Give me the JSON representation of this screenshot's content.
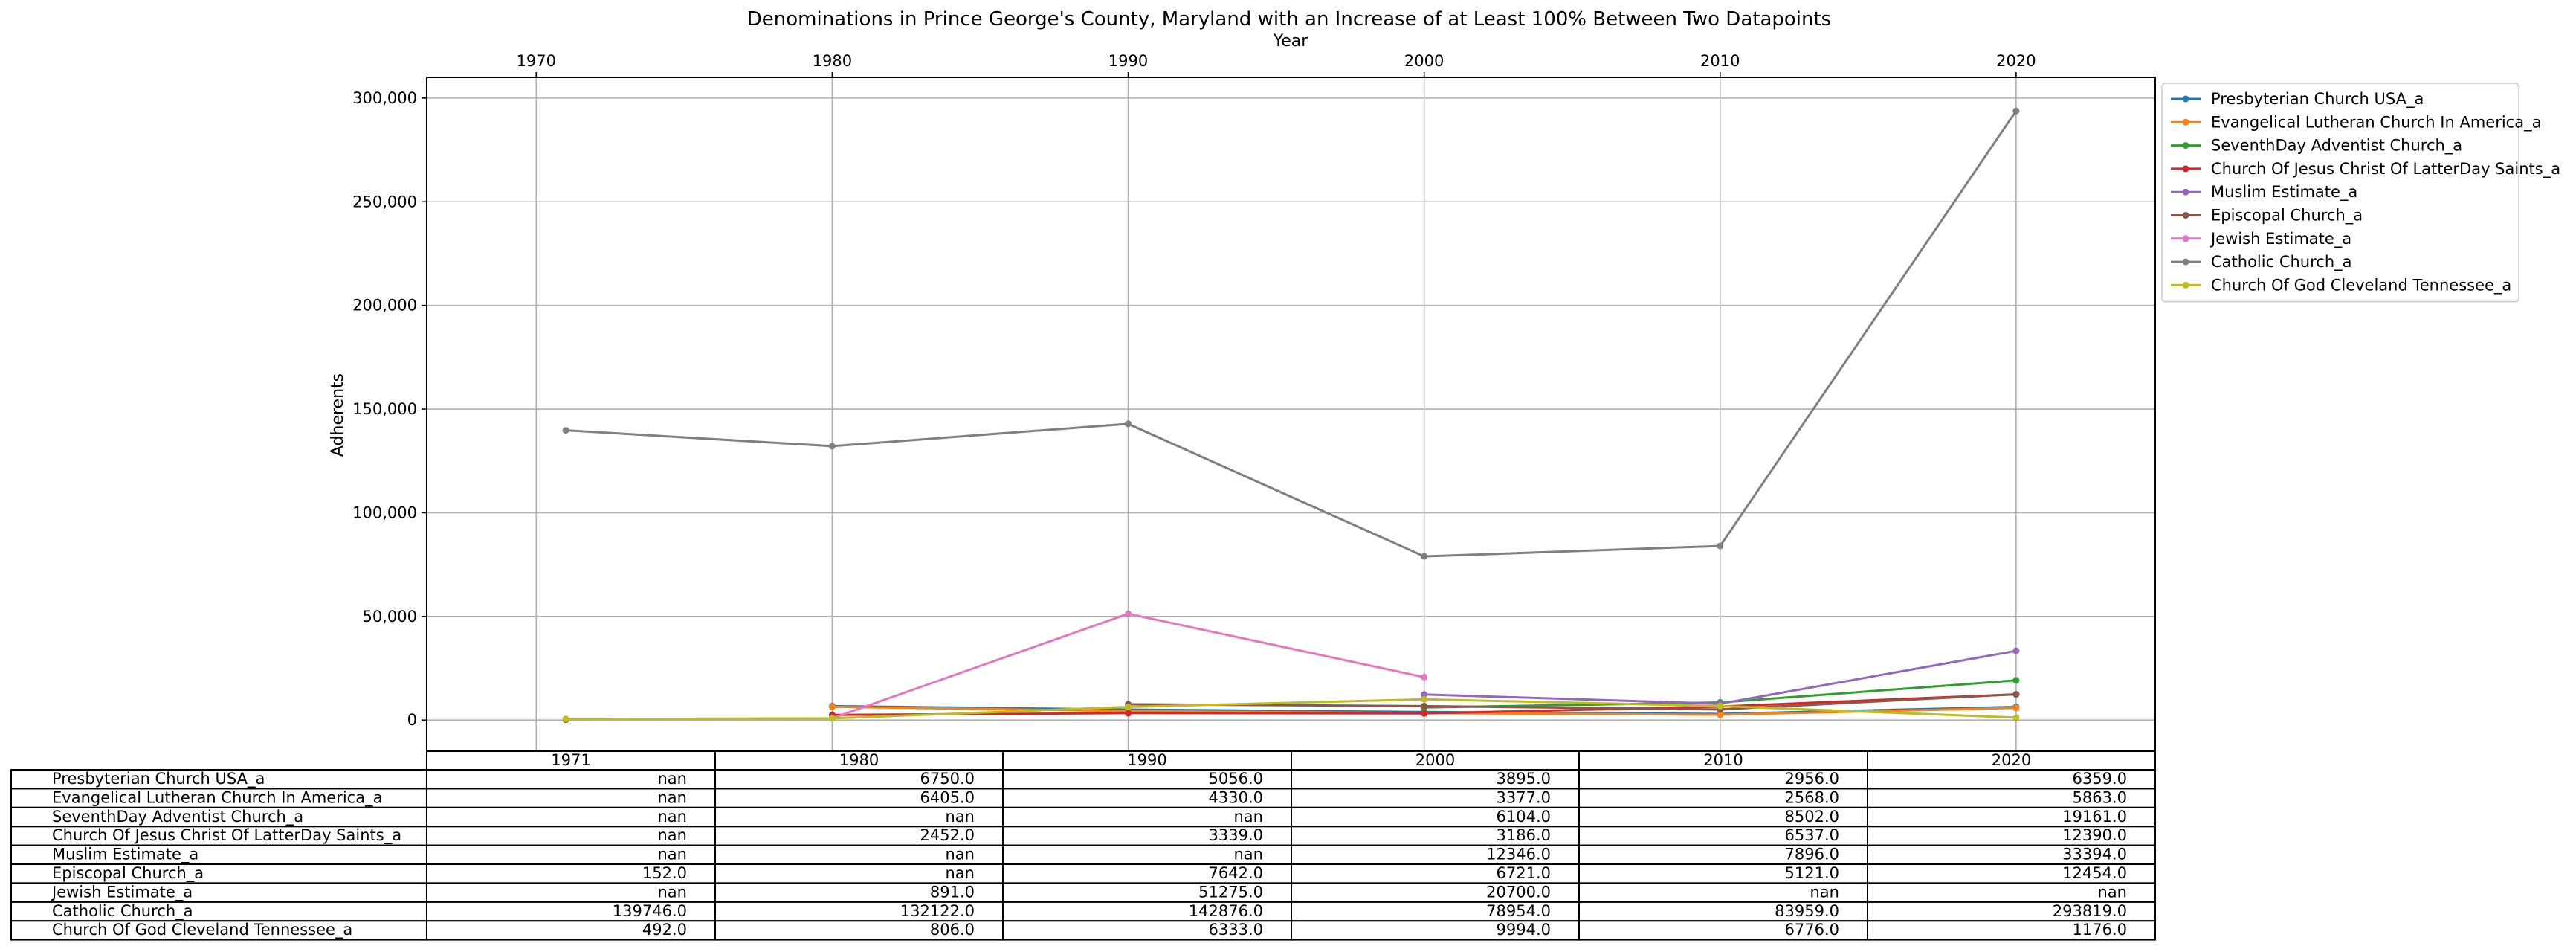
{
  "chart_data": {
    "type": "line",
    "title": "Denominations in Prince George's County, Maryland with an Increase of at Least 100% Between Two Datapoints",
    "xlabel": "Year",
    "ylabel": "Adherents",
    "xlim": [
      1966.3,
      2024.7
    ],
    "ylim": [
      -15000,
      310000
    ],
    "x_ticks": [
      1970,
      1980,
      1990,
      2000,
      2010,
      2020
    ],
    "y_ticks": [
      0,
      50000,
      100000,
      150000,
      200000,
      250000,
      300000
    ],
    "y_tick_labels": [
      "0",
      "50,000",
      "100,000",
      "150,000",
      "200,000",
      "250,000",
      "300,000"
    ],
    "x_axis_position": "top",
    "grid": true,
    "legend_position": "outside-right",
    "x": [
      1971,
      1980,
      1990,
      2000,
      2010,
      2020
    ],
    "series": [
      {
        "name": "Presbyterian Church USA_a",
        "color": "#1f77b4",
        "values": [
          null,
          6750,
          5056,
          3895,
          2956,
          6359
        ]
      },
      {
        "name": "Evangelical Lutheran Church In America_a",
        "color": "#ff7f0e",
        "values": [
          null,
          6405,
          4330,
          3377,
          2568,
          5863
        ]
      },
      {
        "name": "SeventhDay Adventist Church_a",
        "color": "#2ca02c",
        "values": [
          null,
          null,
          null,
          6104,
          8502,
          19161
        ]
      },
      {
        "name": "Church Of Jesus Christ Of LatterDay Saints_a",
        "color": "#d62728",
        "values": [
          null,
          2452,
          3339,
          3186,
          6537,
          12390
        ]
      },
      {
        "name": "Muslim Estimate_a",
        "color": "#9467bd",
        "values": [
          null,
          null,
          null,
          12346,
          7896,
          33394
        ]
      },
      {
        "name": "Episcopal Church_a",
        "color": "#8c564b",
        "values": [
          152,
          null,
          7642,
          6721,
          5121,
          12454
        ]
      },
      {
        "name": "Jewish Estimate_a",
        "color": "#e377c2",
        "values": [
          null,
          891,
          51275,
          20700,
          null,
          null
        ]
      },
      {
        "name": "Catholic Church_a",
        "color": "#7f7f7f",
        "values": [
          139746,
          132122,
          142876,
          78954,
          83959,
          293819
        ]
      },
      {
        "name": "Church Of God Cleveland Tennessee_a",
        "color": "#bcbd22",
        "values": [
          492,
          806,
          6333,
          9994,
          6776,
          1176
        ]
      }
    ],
    "table": {
      "columns": [
        "1971",
        "1980",
        "1990",
        "2000",
        "2010",
        "2020"
      ],
      "rows": [
        {
          "label": "Presbyterian Church USA_a",
          "cells": [
            "nan",
            "6750.0",
            "5056.0",
            "3895.0",
            "2956.0",
            "6359.0"
          ]
        },
        {
          "label": "Evangelical Lutheran Church In America_a",
          "cells": [
            "nan",
            "6405.0",
            "4330.0",
            "3377.0",
            "2568.0",
            "5863.0"
          ]
        },
        {
          "label": "SeventhDay Adventist Church_a",
          "cells": [
            "nan",
            "nan",
            "nan",
            "6104.0",
            "8502.0",
            "19161.0"
          ]
        },
        {
          "label": "Church Of Jesus Christ Of LatterDay Saints_a",
          "cells": [
            "nan",
            "2452.0",
            "3339.0",
            "3186.0",
            "6537.0",
            "12390.0"
          ]
        },
        {
          "label": "Muslim Estimate_a",
          "cells": [
            "nan",
            "nan",
            "nan",
            "12346.0",
            "7896.0",
            "33394.0"
          ]
        },
        {
          "label": "Episcopal Church_a",
          "cells": [
            "152.0",
            "nan",
            "7642.0",
            "6721.0",
            "5121.0",
            "12454.0"
          ]
        },
        {
          "label": "Jewish Estimate_a",
          "cells": [
            "nan",
            "891.0",
            "51275.0",
            "20700.0",
            "nan",
            "nan"
          ]
        },
        {
          "label": "Catholic Church_a",
          "cells": [
            "139746.0",
            "132122.0",
            "142876.0",
            "78954.0",
            "83959.0",
            "293819.0"
          ]
        },
        {
          "label": "Church Of God Cleveland Tennessee_a",
          "cells": [
            "492.0",
            "806.0",
            "6333.0",
            "9994.0",
            "6776.0",
            "1176.0"
          ]
        }
      ]
    }
  }
}
